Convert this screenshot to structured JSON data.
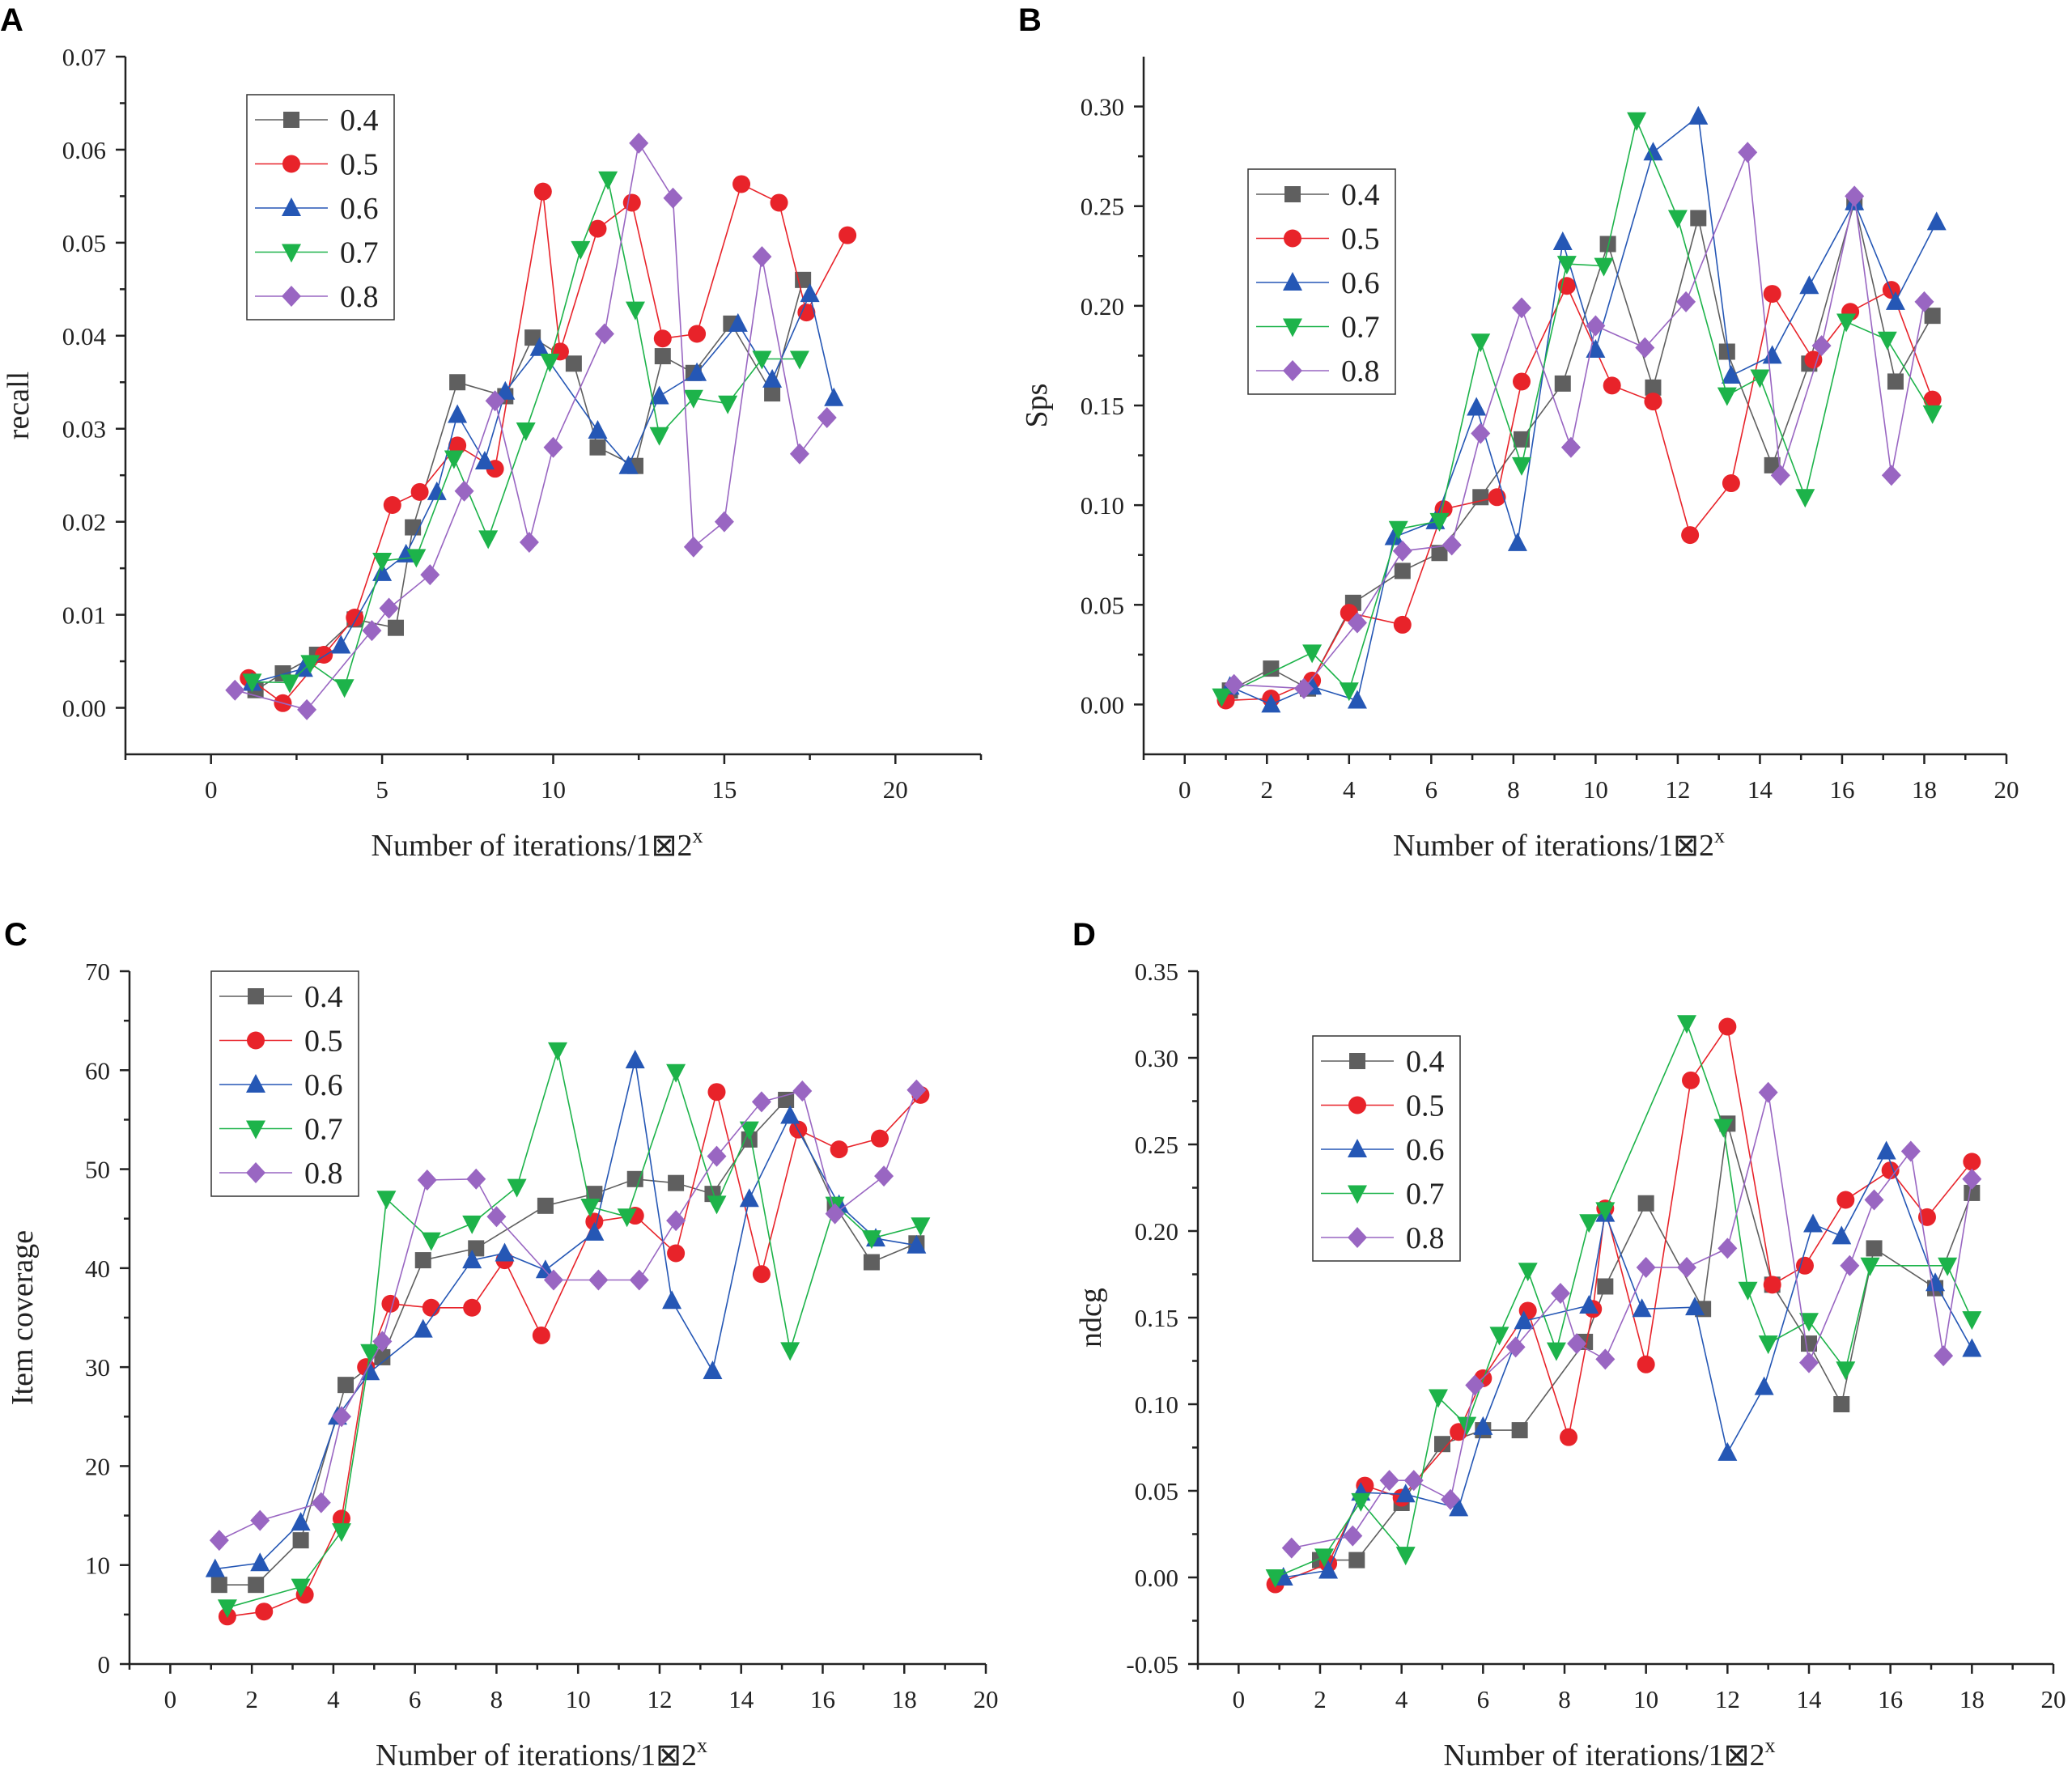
{
  "colors": {
    "0.4": "#5f5f5f",
    "0.5": "#e8232a",
    "0.6": "#2557b5",
    "0.7": "#1db34a",
    "0.8": "#9966c2"
  },
  "markers": {
    "0.4": "square",
    "0.5": "circle",
    "0.6": "triangle-up",
    "0.7": "triangle-down",
    "0.8": "diamond"
  },
  "chart_data": [
    {
      "panel": "A",
      "type": "line",
      "xlabel": "Number of iterations/1⊠2",
      "xlabel_sup": "x",
      "ylabel": "recall",
      "xlim": [
        -2.5,
        22.5
      ],
      "ylim": [
        -0.005,
        0.07
      ],
      "xticks": [
        0,
        5,
        10,
        15,
        20
      ],
      "xtick_labels": [
        "0",
        "5",
        "10",
        "15",
        "20"
      ],
      "yticks": [
        0,
        0.01,
        0.02,
        0.03,
        0.04,
        0.05,
        0.06,
        0.07
      ],
      "ytick_labels": [
        "0.00",
        "0.01",
        "0.02",
        "0.03",
        "0.04",
        "0.05",
        "0.06",
        "0.07"
      ],
      "legend_position": "top-left",
      "series": [
        {
          "name": "0.4",
          "x": [
            1.3,
            2.1,
            3.1,
            4.2,
            5.4,
            5.9,
            7.2,
            8.6,
            9.4,
            10.6,
            11.3,
            12.4,
            13.2,
            14.1,
            15.2,
            16.4,
            17.3
          ],
          "y": [
            0.0019,
            0.0037,
            0.0057,
            0.0095,
            0.0086,
            0.0194,
            0.035,
            0.0335,
            0.0398,
            0.037,
            0.028,
            0.026,
            0.0378,
            0.036,
            0.0413,
            0.0338,
            0.046
          ]
        },
        {
          "name": "0.5",
          "x": [
            1.1,
            2.1,
            3.3,
            4.2,
            5.3,
            6.1,
            7.2,
            8.3,
            9.7,
            10.2,
            11.3,
            12.3,
            13.2,
            14.2,
            15.5,
            16.6,
            17.4,
            18.6
          ],
          "y": [
            0.0032,
            0.0005,
            0.0057,
            0.0097,
            0.0218,
            0.0232,
            0.0282,
            0.0257,
            0.0555,
            0.0383,
            0.0515,
            0.0543,
            0.0397,
            0.0402,
            0.0563,
            0.0543,
            0.0425,
            0.0508
          ]
        },
        {
          "name": "0.6",
          "x": [
            1.2,
            2.7,
            3.8,
            5.0,
            5.7,
            6.6,
            7.2,
            8.0,
            8.6,
            9.6,
            11.3,
            12.2,
            13.1,
            14.2,
            15.4,
            16.4,
            17.5,
            18.2
          ],
          "y": [
            0.0027,
            0.0042,
            0.0067,
            0.0145,
            0.0165,
            0.0232,
            0.0315,
            0.0265,
            0.034,
            0.0387,
            0.0298,
            0.026,
            0.0335,
            0.036,
            0.0413,
            0.0353,
            0.0445,
            0.0333
          ]
        },
        {
          "name": "0.7",
          "x": [
            1.2,
            2.3,
            2.9,
            3.9,
            5.0,
            6.0,
            7.1,
            8.1,
            9.2,
            9.9,
            10.8,
            11.6,
            12.4,
            13.1,
            14.1,
            15.1,
            16.1,
            17.2
          ],
          "y": [
            0.0028,
            0.0027,
            0.0048,
            0.0022,
            0.0158,
            0.0162,
            0.0268,
            0.0182,
            0.0298,
            0.0372,
            0.0493,
            0.0568,
            0.0428,
            0.0293,
            0.0333,
            0.0327,
            0.0375,
            0.0375
          ]
        },
        {
          "name": "0.8",
          "x": [
            0.7,
            2.8,
            4.7,
            5.2,
            6.4,
            7.4,
            8.3,
            9.3,
            10.0,
            11.5,
            12.5,
            13.5,
            14.1,
            15.0,
            16.1,
            17.2,
            18.0
          ],
          "y": [
            0.0019,
            -0.0002,
            0.0083,
            0.0107,
            0.0143,
            0.0233,
            0.033,
            0.0178,
            0.028,
            0.0402,
            0.0607,
            0.0548,
            0.0173,
            0.02,
            0.0485,
            0.0273,
            0.0312
          ]
        }
      ]
    },
    {
      "panel": "B",
      "type": "line",
      "xlabel": "Number of iterations/1⊠2",
      "xlabel_sup": "x",
      "ylabel": "Sps",
      "xlim": [
        -1,
        20
      ],
      "ylim": [
        -0.025,
        0.325
      ],
      "xticks": [
        0,
        2,
        4,
        6,
        8,
        10,
        12,
        14,
        16,
        18,
        20
      ],
      "xtick_labels": [
        "0",
        "2",
        "4",
        "6",
        "8",
        "10",
        "12",
        "14",
        "16",
        "18",
        "20"
      ],
      "yticks": [
        0,
        0.05,
        0.1,
        0.15,
        0.2,
        0.25,
        0.3
      ],
      "ytick_labels": [
        "0.00",
        "0.05",
        "0.10",
        "0.15",
        "0.20",
        "0.25",
        "0.30"
      ],
      "legend_position": "top-left",
      "series": [
        {
          "name": "0.4",
          "x": [
            1.1,
            2.1,
            3.0,
            4.1,
            5.3,
            6.2,
            7.2,
            8.2,
            9.2,
            10.3,
            11.4,
            12.5,
            13.2,
            14.3,
            15.2,
            16.3,
            17.3,
            18.2
          ],
          "y": [
            0.007,
            0.018,
            0.008,
            0.051,
            0.067,
            0.076,
            0.104,
            0.133,
            0.161,
            0.231,
            0.159,
            0.244,
            0.177,
            0.12,
            0.171,
            0.252,
            0.162,
            0.195
          ]
        },
        {
          "name": "0.5",
          "x": [
            1.0,
            2.1,
            3.1,
            4.0,
            5.3,
            6.3,
            7.6,
            8.2,
            9.3,
            10.4,
            11.4,
            12.3,
            13.3,
            14.3,
            15.3,
            16.2,
            17.2,
            18.2
          ],
          "y": [
            0.002,
            0.003,
            0.012,
            0.046,
            0.04,
            0.098,
            0.104,
            0.162,
            0.21,
            0.16,
            0.152,
            0.085,
            0.111,
            0.206,
            0.173,
            0.197,
            0.208,
            0.153
          ]
        },
        {
          "name": "0.6",
          "x": [
            1.1,
            2.1,
            3.1,
            4.2,
            5.1,
            6.1,
            7.1,
            8.1,
            9.2,
            10.0,
            11.4,
            12.5,
            13.3,
            14.3,
            15.2,
            16.3,
            17.3,
            18.3
          ],
          "y": [
            0.009,
            0.0,
            0.009,
            0.002,
            0.084,
            0.092,
            0.149,
            0.081,
            0.232,
            0.178,
            0.277,
            0.295,
            0.165,
            0.175,
            0.21,
            0.252,
            0.202,
            0.242
          ]
        },
        {
          "name": "0.7",
          "x": [
            0.9,
            3.1,
            4.0,
            5.2,
            6.2,
            7.2,
            8.2,
            9.3,
            10.2,
            11.0,
            12.0,
            13.2,
            14.0,
            15.1,
            16.1,
            17.1,
            18.2
          ],
          "y": [
            0.004,
            0.026,
            0.007,
            0.088,
            0.092,
            0.182,
            0.12,
            0.221,
            0.22,
            0.293,
            0.244,
            0.155,
            0.164,
            0.104,
            0.192,
            0.183,
            0.146
          ]
        },
        {
          "name": "0.8",
          "x": [
            1.2,
            2.9,
            4.2,
            5.3,
            6.5,
            7.2,
            8.2,
            9.4,
            10.0,
            11.2,
            12.2,
            13.7,
            14.5,
            15.5,
            16.3,
            17.2,
            18.0
          ],
          "y": [
            0.01,
            0.008,
            0.041,
            0.077,
            0.08,
            0.136,
            0.199,
            0.129,
            0.19,
            0.179,
            0.202,
            0.277,
            0.115,
            0.18,
            0.255,
            0.115,
            0.202
          ]
        }
      ]
    },
    {
      "panel": "C",
      "type": "line",
      "xlabel": "Number of iterations/1⊠2",
      "xlabel_sup": "x",
      "ylabel": "Item coverage",
      "xlim": [
        -1,
        20
      ],
      "ylim": [
        0,
        70
      ],
      "xticks": [
        0,
        2,
        4,
        6,
        8,
        10,
        12,
        14,
        16,
        18,
        20
      ],
      "xtick_labels": [
        "0",
        "2",
        "4",
        "6",
        "8",
        "10",
        "12",
        "14",
        "16",
        "18",
        "20"
      ],
      "yticks": [
        0,
        10,
        20,
        30,
        40,
        50,
        60,
        70
      ],
      "ytick_labels": [
        "0",
        "10",
        "20",
        "30",
        "40",
        "50",
        "60",
        "70"
      ],
      "legend_position": "top-left",
      "series": [
        {
          "name": "0.4",
          "x": [
            1.2,
            2.1,
            3.2,
            4.3,
            5.2,
            6.2,
            7.5,
            9.2,
            10.4,
            11.4,
            12.4,
            13.3,
            14.2,
            15.1,
            16.3,
            17.2,
            18.3
          ],
          "y": [
            8.0,
            8.0,
            12.5,
            28.2,
            31.0,
            40.8,
            42.0,
            46.3,
            47.5,
            49.0,
            48.6,
            47.5,
            53.0,
            57.0,
            46.3,
            40.6,
            42.5
          ]
        },
        {
          "name": "0.5",
          "x": [
            1.4,
            2.3,
            3.3,
            4.2,
            4.8,
            5.4,
            6.4,
            7.4,
            8.2,
            9.1,
            10.4,
            11.4,
            12.4,
            13.4,
            14.5,
            15.4,
            16.4,
            17.4,
            18.4
          ],
          "y": [
            4.8,
            5.3,
            7.0,
            14.7,
            30.0,
            36.4,
            36.0,
            36.0,
            40.8,
            33.2,
            44.7,
            45.3,
            41.5,
            57.8,
            39.4,
            54.0,
            52.0,
            53.1,
            57.5
          ]
        },
        {
          "name": "0.6",
          "x": [
            1.1,
            2.2,
            3.2,
            4.1,
            4.9,
            6.2,
            7.4,
            8.2,
            9.2,
            10.4,
            11.4,
            12.3,
            13.3,
            14.2,
            15.2,
            16.4,
            17.3,
            18.3
          ],
          "y": [
            9.6,
            10.2,
            14.3,
            25.0,
            29.5,
            33.8,
            40.8,
            41.5,
            39.8,
            43.6,
            61.0,
            36.7,
            29.6,
            47.0,
            55.4,
            46.4,
            43.0,
            42.3
          ]
        },
        {
          "name": "0.7",
          "x": [
            1.4,
            3.2,
            4.2,
            4.9,
            5.3,
            6.4,
            7.4,
            8.5,
            9.5,
            10.3,
            11.2,
            12.4,
            13.4,
            14.2,
            15.2,
            16.3,
            17.2,
            18.4
          ],
          "y": [
            5.7,
            7.8,
            13.4,
            31.5,
            47.0,
            42.8,
            44.5,
            48.2,
            62.0,
            46.2,
            45.2,
            59.8,
            46.5,
            54.0,
            31.7,
            46.4,
            43.0,
            44.3
          ]
        },
        {
          "name": "0.8",
          "x": [
            1.2,
            2.2,
            3.7,
            4.2,
            5.2,
            6.3,
            7.5,
            8.0,
            9.4,
            10.5,
            11.5,
            12.4,
            13.4,
            14.5,
            15.5,
            16.3,
            17.5,
            18.3
          ],
          "y": [
            12.5,
            14.5,
            16.3,
            25.0,
            32.6,
            48.9,
            49.0,
            45.2,
            38.8,
            38.8,
            38.8,
            44.8,
            51.3,
            56.8,
            57.9,
            45.5,
            49.3,
            58.0
          ]
        }
      ]
    },
    {
      "panel": "D",
      "type": "line",
      "xlabel": "Number of iterations/1⊠2",
      "xlabel_sup": "x",
      "ylabel": "ndcg",
      "xlim": [
        -1,
        20
      ],
      "ylim": [
        -0.05,
        0.35
      ],
      "xticks": [
        0,
        2,
        4,
        6,
        8,
        10,
        12,
        14,
        16,
        18,
        20
      ],
      "xtick_labels": [
        "0",
        "2",
        "4",
        "6",
        "8",
        "10",
        "12",
        "14",
        "16",
        "18",
        "20"
      ],
      "yticks": [
        -0.05,
        0,
        0.05,
        0.1,
        0.15,
        0.2,
        0.25,
        0.3,
        0.35
      ],
      "ytick_labels": [
        "-0.05",
        "0.00",
        "0.05",
        "0.10",
        "0.15",
        "0.20",
        "0.25",
        "0.30",
        "0.35"
      ],
      "legend_position": "top-left",
      "series": [
        {
          "name": "0.4",
          "x": [
            2.0,
            2.9,
            4.0,
            5.0,
            6.0,
            6.9,
            8.5,
            9.0,
            10.0,
            11.4,
            12.0,
            13.1,
            14.0,
            14.8,
            15.6,
            17.1,
            18.0
          ],
          "y": [
            0.01,
            0.01,
            0.043,
            0.077,
            0.085,
            0.085,
            0.136,
            0.168,
            0.216,
            0.155,
            0.262,
            0.169,
            0.135,
            0.1,
            0.19,
            0.167,
            0.222
          ]
        },
        {
          "name": "0.5",
          "x": [
            0.9,
            2.2,
            3.1,
            4.0,
            5.4,
            6.0,
            7.1,
            8.1,
            8.7,
            9.0,
            10.0,
            11.1,
            12.0,
            13.1,
            13.9,
            14.9,
            16.0,
            16.9,
            18.0
          ],
          "y": [
            -0.004,
            0.008,
            0.053,
            0.046,
            0.084,
            0.115,
            0.154,
            0.081,
            0.155,
            0.213,
            0.123,
            0.287,
            0.318,
            0.169,
            0.18,
            0.218,
            0.235,
            0.208,
            0.24
          ]
        },
        {
          "name": "0.6",
          "x": [
            1.1,
            2.2,
            3.0,
            4.1,
            5.4,
            6.0,
            7.0,
            8.6,
            9.0,
            9.9,
            11.2,
            12.0,
            12.9,
            14.1,
            14.8,
            15.9,
            17.1,
            18.0
          ],
          "y": [
            0.0,
            0.004,
            0.049,
            0.048,
            0.04,
            0.087,
            0.148,
            0.157,
            0.21,
            0.155,
            0.156,
            0.072,
            0.11,
            0.204,
            0.197,
            0.246,
            0.17,
            0.132
          ]
        },
        {
          "name": "0.7",
          "x": [
            0.9,
            2.1,
            3.0,
            4.1,
            4.9,
            5.6,
            6.4,
            7.1,
            7.8,
            8.6,
            9.0,
            11.0,
            11.9,
            12.5,
            13.0,
            14.0,
            14.9,
            15.5,
            17.4,
            18.0
          ],
          "y": [
            0.0,
            0.012,
            0.044,
            0.013,
            0.104,
            0.088,
            0.14,
            0.177,
            0.131,
            0.205,
            0.212,
            0.32,
            0.26,
            0.166,
            0.135,
            0.148,
            0.12,
            0.18,
            0.18,
            0.149
          ]
        },
        {
          "name": "0.8",
          "x": [
            1.3,
            2.8,
            3.7,
            4.3,
            5.2,
            5.8,
            6.8,
            7.9,
            8.3,
            9.0,
            10.0,
            11.0,
            12.0,
            13.0,
            14.0,
            15.0,
            15.6,
            16.5,
            17.3,
            18.0
          ],
          "y": [
            0.017,
            0.024,
            0.056,
            0.056,
            0.045,
            0.111,
            0.133,
            0.164,
            0.135,
            0.126,
            0.179,
            0.179,
            0.19,
            0.28,
            0.124,
            0.18,
            0.218,
            0.246,
            0.128,
            0.23
          ]
        }
      ]
    }
  ]
}
